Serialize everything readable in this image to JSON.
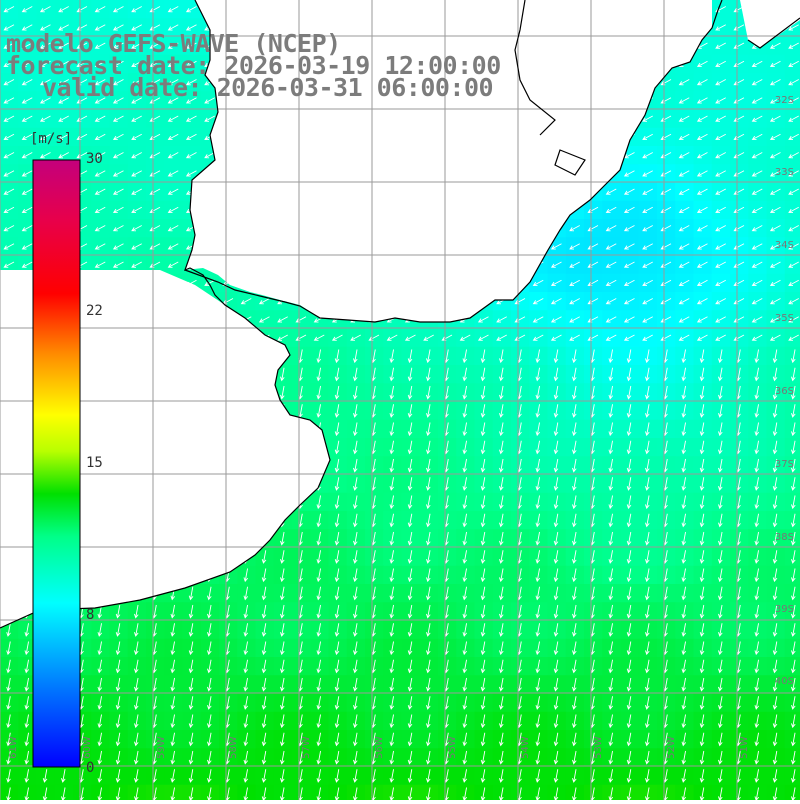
{
  "header": {
    "line1": "modelo GEFS-WAVE (NCEP)",
    "line2": "forecast date: 2026-03-19 12:00:00",
    "line3": "valid date: 2026-03-31 06:00:00"
  },
  "colorbar": {
    "unit": "[m/s]",
    "min": 0,
    "max": 30,
    "ticks": [
      30,
      22,
      15,
      8,
      0
    ]
  },
  "grid": {
    "lat_labels": [
      "32S",
      "33S",
      "34S",
      "35S",
      "36S",
      "37S",
      "38S",
      "39S",
      "40S"
    ],
    "lon_labels": [
      "61W",
      "60W",
      "59W",
      "58W",
      "57W",
      "56W",
      "55W",
      "54W",
      "53W",
      "52W",
      "51W"
    ]
  },
  "colors": {
    "land": "#ffffff",
    "grid_line": "#9a9a9a",
    "coast_line": "#000000",
    "arrow": "#ffffff",
    "title_text": "#7c7c7c"
  }
}
